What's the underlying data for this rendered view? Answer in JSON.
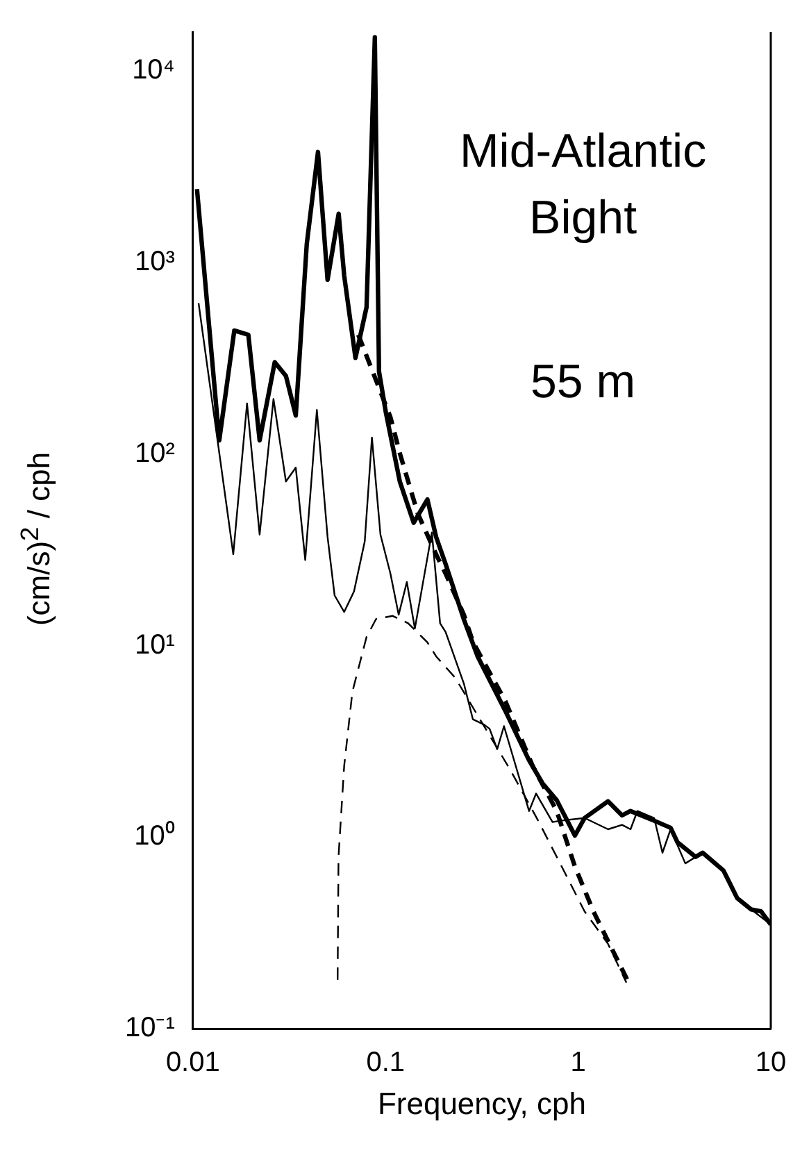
{
  "chart_data": {
    "type": "line",
    "xlabel": "Frequency, cph",
    "ylabel": "(cm/s)$^{2}$ / cph",
    "annotations": [
      "Mid-Atlantic",
      "Bight",
      "55 m"
    ],
    "log": "xy",
    "grid": false,
    "legend": false,
    "marker": "none",
    "xlim": [
      0.01,
      10
    ],
    "xticks": [
      0.01,
      0.1,
      1,
      10
    ],
    "ylim": [
      0.1,
      16000
    ],
    "yticks": [
      {
        "value": 0.1,
        "label": "10⁻¹"
      },
      {
        "value": 1,
        "label": "10⁰"
      },
      {
        "value": 10,
        "label": "10¹"
      },
      {
        "value": 100,
        "label": "10²"
      },
      {
        "value": 1000,
        "label": "10³"
      },
      {
        "value": 10000,
        "label": "10⁴"
      }
    ],
    "series": [
      {
        "color": "#000000",
        "line_style": "solid",
        "x": [
          0.0105,
          0.0137,
          0.0164,
          0.0194,
          0.0222,
          0.0266,
          0.0304,
          0.0342,
          0.039,
          0.0446,
          0.05,
          0.0571,
          0.061,
          0.0698,
          0.0797,
          0.088,
          0.0925,
          0.1005,
          0.1186,
          0.14,
          0.165,
          0.183,
          0.205,
          0.2545,
          0.3005,
          0.419,
          0.556,
          0.656,
          0.774,
          0.962,
          1.08,
          1.43,
          1.69,
          1.87,
          2.48,
          3.02,
          3.28,
          4.07,
          4.43,
          5.68,
          6.7,
          7.9,
          8.9,
          10
        ],
        "values": [
          2420,
          118,
          442,
          420,
          118,
          302,
          256,
          159,
          1250,
          3780,
          813,
          1800,
          855,
          318,
          585,
          15000,
          270,
          164,
          72,
          43.8,
          58,
          37,
          26.7,
          13.8,
          8.8,
          4.56,
          2.52,
          1.9,
          1.56,
          1.02,
          1.26,
          1.54,
          1.3,
          1.37,
          1.22,
          1.12,
          0.94,
          0.79,
          0.83,
          0.67,
          0.48,
          0.42,
          0.41,
          0.35
        ]
      },
      {
        "color": "#000000",
        "line_style": "solid",
        "x": [
          0.0107,
          0.0162,
          0.0191,
          0.0222,
          0.0262,
          0.0304,
          0.0342,
          0.0383,
          0.044,
          0.05,
          0.0544,
          0.061,
          0.0686,
          0.078,
          0.085,
          0.0941,
          0.106,
          0.117,
          0.129,
          0.142,
          0.174,
          0.192,
          0.205,
          0.255,
          0.284,
          0.325,
          0.347,
          0.38,
          0.412,
          0.556,
          0.605,
          0.736,
          0.81,
          1.08,
          1.43,
          1.69,
          1.87,
          2.03,
          2.48,
          2.74,
          3.02,
          3.6,
          4.43,
          5.68,
          6.7,
          7.9,
          10
        ],
        "values": [
          615,
          30,
          184,
          38,
          194,
          72,
          85,
          28,
          170,
          37,
          18.3,
          15,
          19.2,
          35,
          122,
          38,
          23.8,
          14.5,
          21.5,
          12.3,
          39,
          13.1,
          11.8,
          6.35,
          4.13,
          3.87,
          3.68,
          2.88,
          3.8,
          1.37,
          1.69,
          1.2,
          1.22,
          1.26,
          1.1,
          1.16,
          1.1,
          1.37,
          1.26,
          0.83,
          1.1,
          0.73,
          0.83,
          0.67,
          0.48,
          0.42,
          0.35
        ]
      },
      {
        "color": "#000000",
        "line_style": "dashed",
        "x": [
          0.0564,
          0.057,
          0.061,
          0.0673,
          0.0797,
          0.0894,
          0.109,
          0.131,
          0.165,
          0.183,
          0.23,
          0.3,
          0.445,
          0.62,
          0.774,
          1.08,
          1.43,
          1.78
        ],
        "values": [
          0.18,
          0.79,
          2.36,
          5.75,
          11.1,
          13.8,
          14.3,
          13.1,
          10.4,
          8.8,
          6.8,
          4.34,
          2.24,
          1.22,
          0.79,
          0.41,
          0.277,
          0.174
        ]
      },
      {
        "color": "#000000",
        "line_style": "dashed",
        "x": [
          0.0722,
          0.106,
          0.119,
          0.147,
          0.183,
          0.205,
          0.255,
          0.285,
          0.42,
          0.58,
          0.774,
          0.96,
          1.2,
          1.5,
          1.83
        ],
        "values": [
          420,
          156,
          100,
          49,
          30,
          23.8,
          14.5,
          10.4,
          5.1,
          2.36,
          1.37,
          0.707,
          0.41,
          0.26,
          0.174
        ]
      }
    ]
  }
}
